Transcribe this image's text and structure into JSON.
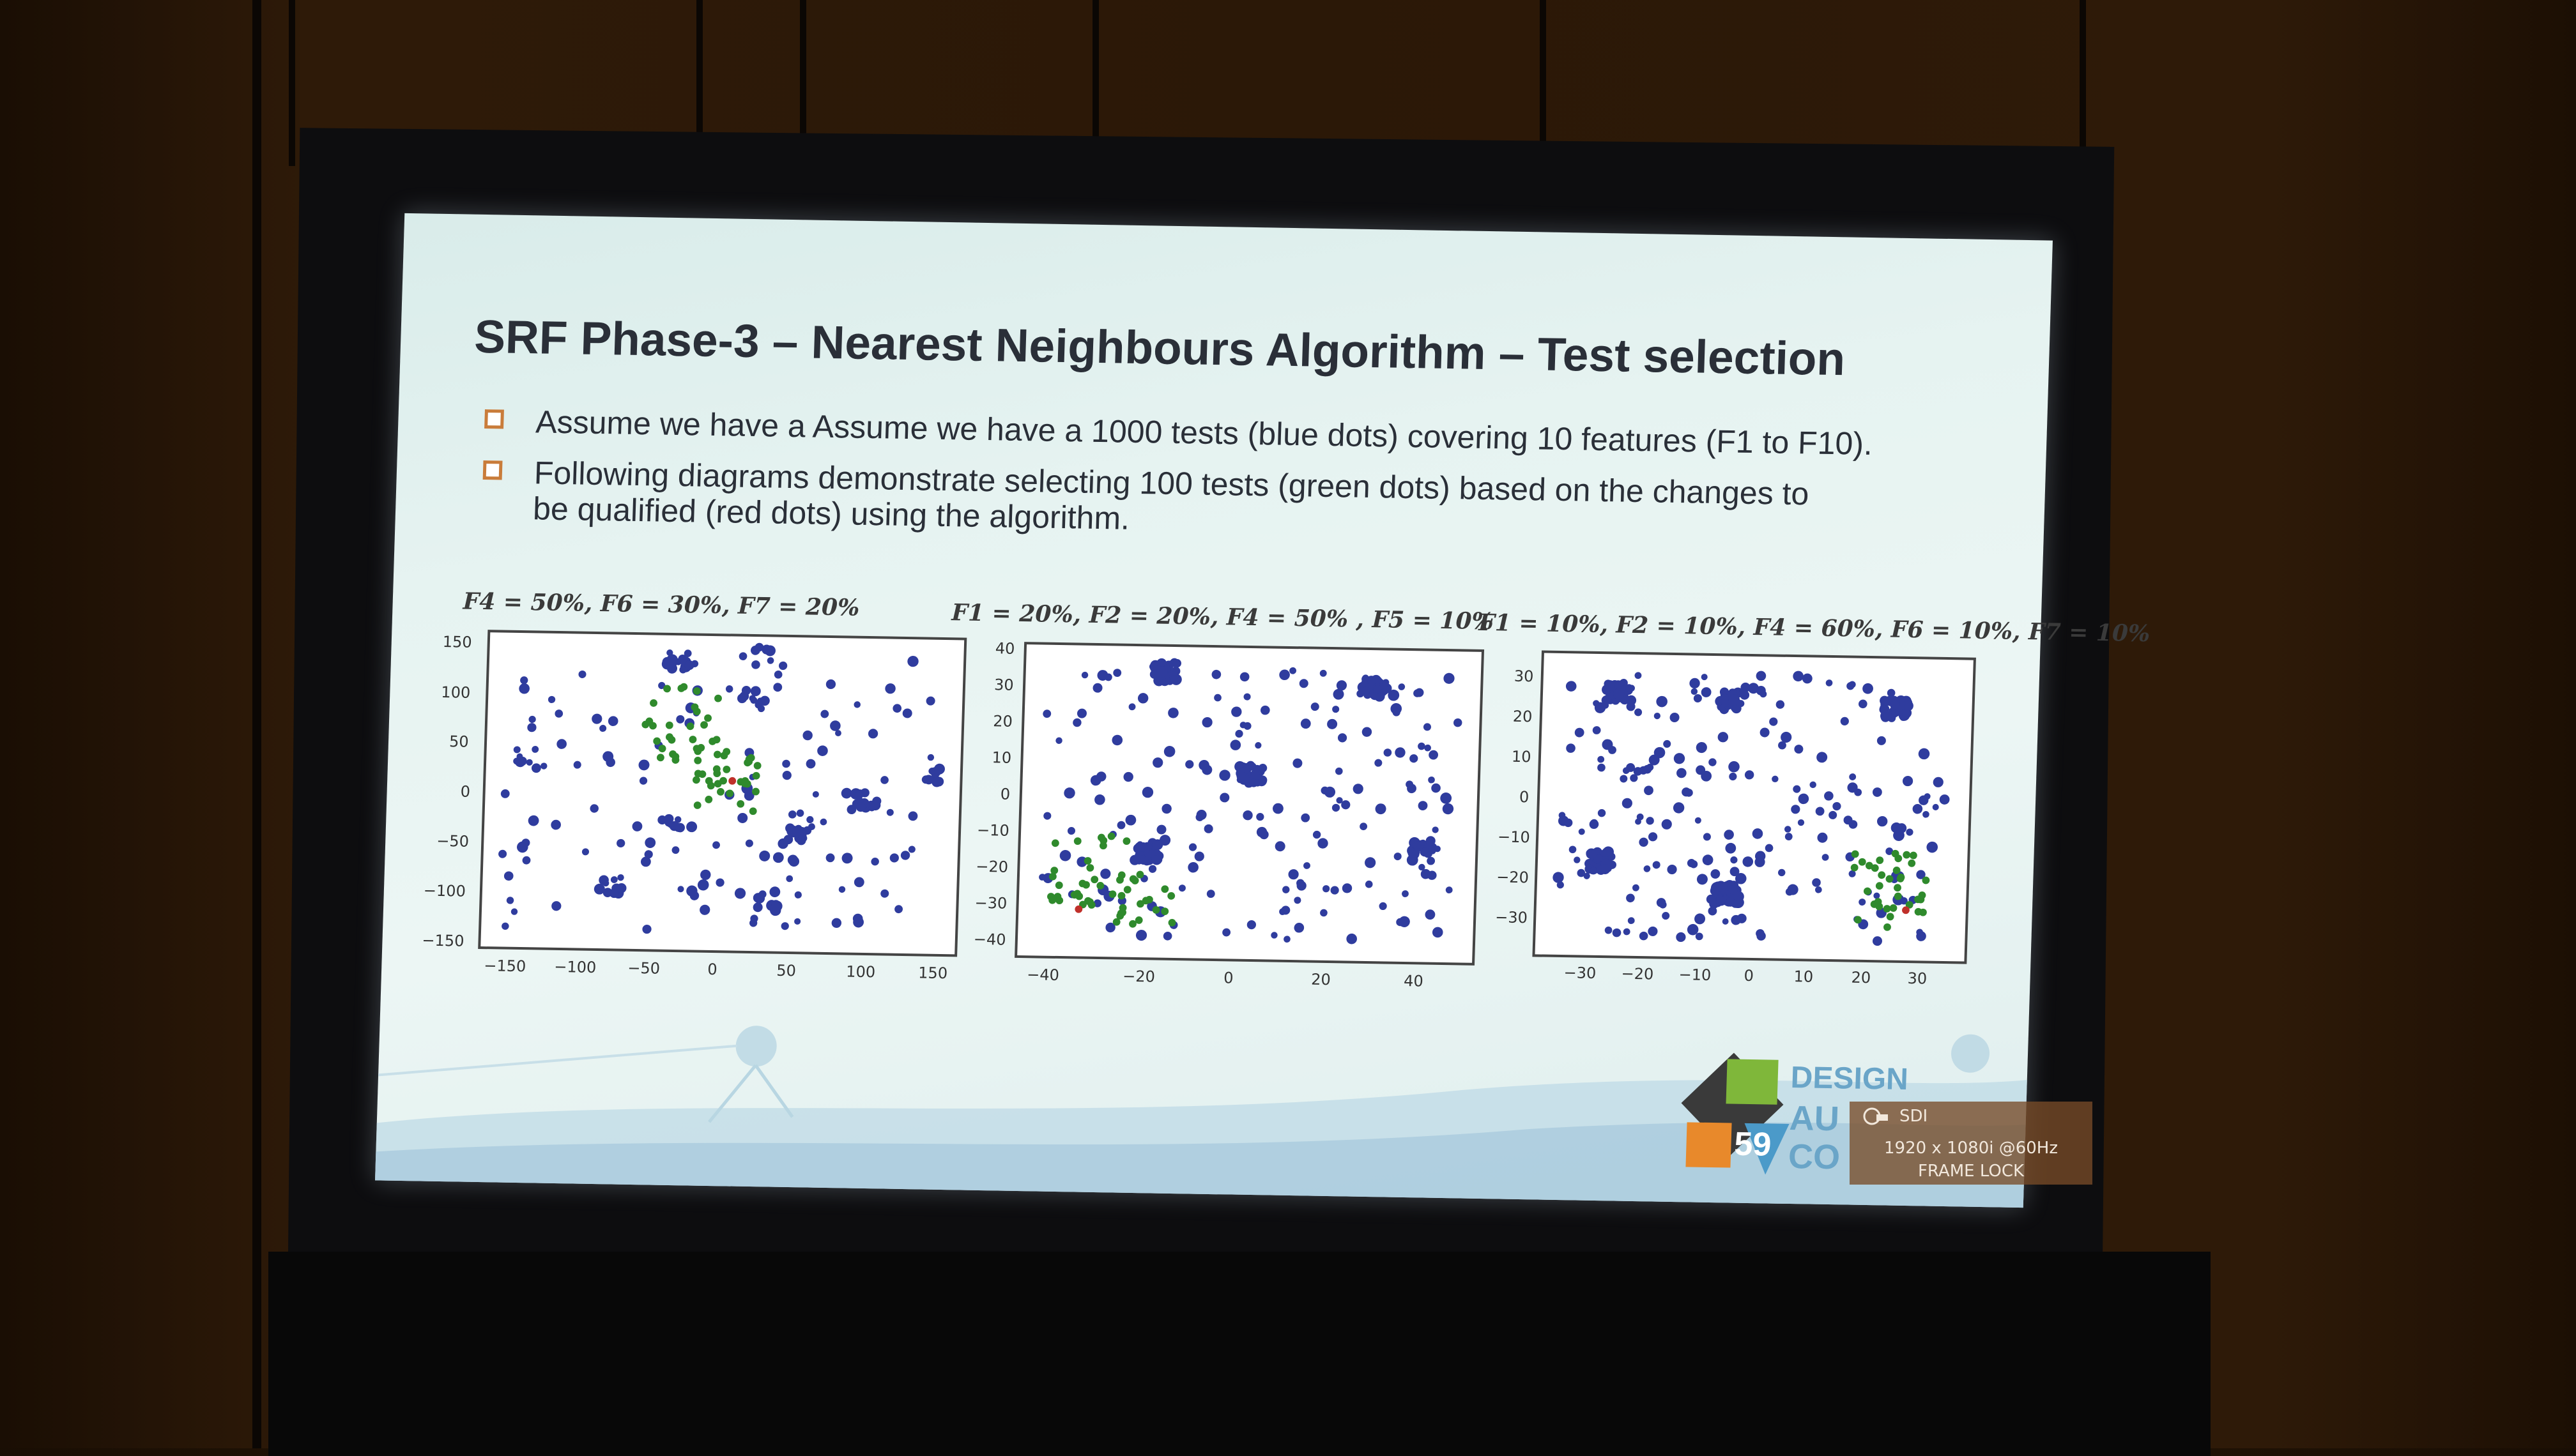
{
  "slide": {
    "title": "SRF Phase-3 – Nearest Neighbours Algorithm – Test selection",
    "bullets": [
      "Assume we have a Assume we have a 1000 tests (blue dots) covering 10 features (F1 to F10).",
      "Following diagrams demonstrate selecting 100 tests (green dots) based on the changes to be qualified (red dots) using the algorithm."
    ],
    "plots": [
      {
        "caption": "F4 = 50%, F6 = 30%, F7 = 20%",
        "x_ticks": [
          "−150",
          "−100",
          "−50",
          "0",
          "50",
          "100",
          "150"
        ],
        "y_ticks": [
          "150",
          "100",
          "50",
          "0",
          "−50",
          "−100",
          "−150"
        ]
      },
      {
        "caption": "F1 = 20%, F2 = 20%, F4 = 50% , F5 = 10%",
        "x_ticks": [
          "−40",
          "−20",
          "0",
          "20",
          "40"
        ],
        "y_ticks": [
          "40",
          "30",
          "20",
          "10",
          "0",
          "−10",
          "−20",
          "−30",
          "−40"
        ]
      },
      {
        "caption": "F1 = 10%, F2 = 10%, F4 = 60%, F6 = 10%, F7 = 10%",
        "x_ticks": [
          "−30",
          "−20",
          "−10",
          "0",
          "10",
          "20",
          "30"
        ],
        "y_ticks": [
          "30",
          "20",
          "10",
          "0",
          "−10",
          "−20",
          "−30"
        ]
      }
    ],
    "logo": {
      "number": "59",
      "text_lines": [
        "DESIGN",
        "AU",
        "CO"
      ]
    }
  },
  "osd": {
    "source": "SDI",
    "resolution": "1920 x 1080i @60Hz",
    "status": "FRAME LOCK"
  },
  "colors": {
    "blue_dots": "#2f3c9e",
    "green_dots": "#2f8a2c",
    "red_dots": "#c0302a",
    "bullet_box": "#c97c3a"
  }
}
